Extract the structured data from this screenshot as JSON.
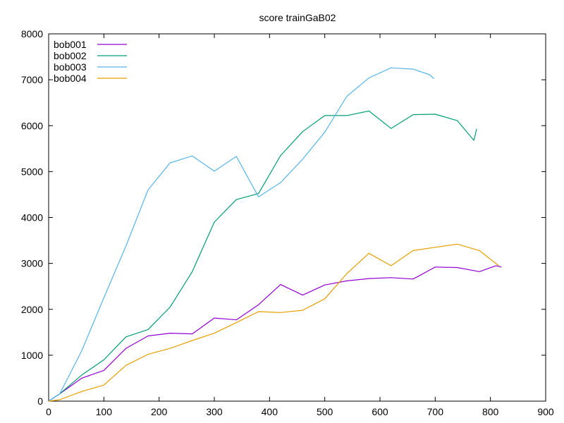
{
  "chart_data": {
    "type": "line",
    "title": "score trainGaB02",
    "xlabel": "",
    "ylabel": "",
    "xlim": [
      0,
      900
    ],
    "ylim": [
      0,
      8000
    ],
    "x_ticks": [
      0,
      100,
      200,
      300,
      400,
      500,
      600,
      700,
      800,
      900
    ],
    "y_ticks": [
      0,
      1000,
      2000,
      3000,
      4000,
      5000,
      6000,
      7000,
      8000
    ],
    "grid": false,
    "legend_position": "top-left",
    "series": [
      {
        "name": "bob001",
        "color": "#9400d3",
        "points": [
          [
            0,
            0
          ],
          [
            20,
            160
          ],
          [
            60,
            500
          ],
          [
            100,
            670
          ],
          [
            140,
            1150
          ],
          [
            180,
            1420
          ],
          [
            220,
            1480
          ],
          [
            260,
            1465
          ],
          [
            300,
            1810
          ],
          [
            340,
            1770
          ],
          [
            380,
            2100
          ],
          [
            420,
            2540
          ],
          [
            460,
            2310
          ],
          [
            500,
            2530
          ],
          [
            540,
            2620
          ],
          [
            580,
            2670
          ],
          [
            620,
            2690
          ],
          [
            660,
            2660
          ],
          [
            700,
            2920
          ],
          [
            740,
            2910
          ],
          [
            780,
            2820
          ],
          [
            810,
            2950
          ],
          [
            820,
            2920
          ]
        ]
      },
      {
        "name": "bob002",
        "color": "#009e73",
        "points": [
          [
            0,
            0
          ],
          [
            20,
            160
          ],
          [
            60,
            570
          ],
          [
            100,
            900
          ],
          [
            140,
            1400
          ],
          [
            180,
            1560
          ],
          [
            220,
            2050
          ],
          [
            260,
            2820
          ],
          [
            300,
            3900
          ],
          [
            340,
            4390
          ],
          [
            380,
            4520
          ],
          [
            420,
            5350
          ],
          [
            460,
            5870
          ],
          [
            500,
            6220
          ],
          [
            540,
            6220
          ],
          [
            580,
            6320
          ],
          [
            620,
            5940
          ],
          [
            660,
            6240
          ],
          [
            700,
            6250
          ],
          [
            740,
            6110
          ],
          [
            770,
            5680
          ],
          [
            775,
            5930
          ]
        ]
      },
      {
        "name": "bob003",
        "color": "#56b4e9",
        "points": [
          [
            0,
            0
          ],
          [
            20,
            160
          ],
          [
            60,
            1100
          ],
          [
            100,
            2250
          ],
          [
            140,
            3380
          ],
          [
            180,
            4600
          ],
          [
            220,
            5190
          ],
          [
            260,
            5340
          ],
          [
            300,
            5010
          ],
          [
            340,
            5330
          ],
          [
            380,
            4450
          ],
          [
            420,
            4760
          ],
          [
            460,
            5270
          ],
          [
            500,
            5860
          ],
          [
            540,
            6640
          ],
          [
            580,
            7040
          ],
          [
            620,
            7260
          ],
          [
            660,
            7230
          ],
          [
            690,
            7110
          ],
          [
            698,
            7020
          ]
        ]
      },
      {
        "name": "bob004",
        "color": "#e69f00",
        "points": [
          [
            0,
            0
          ],
          [
            20,
            30
          ],
          [
            60,
            210
          ],
          [
            100,
            350
          ],
          [
            140,
            780
          ],
          [
            180,
            1020
          ],
          [
            220,
            1150
          ],
          [
            260,
            1320
          ],
          [
            300,
            1480
          ],
          [
            340,
            1710
          ],
          [
            380,
            1950
          ],
          [
            420,
            1930
          ],
          [
            460,
            1980
          ],
          [
            500,
            2230
          ],
          [
            540,
            2780
          ],
          [
            580,
            3220
          ],
          [
            620,
            2950
          ],
          [
            660,
            3280
          ],
          [
            700,
            3350
          ],
          [
            740,
            3420
          ],
          [
            780,
            3280
          ],
          [
            815,
            2950
          ]
        ]
      }
    ]
  }
}
